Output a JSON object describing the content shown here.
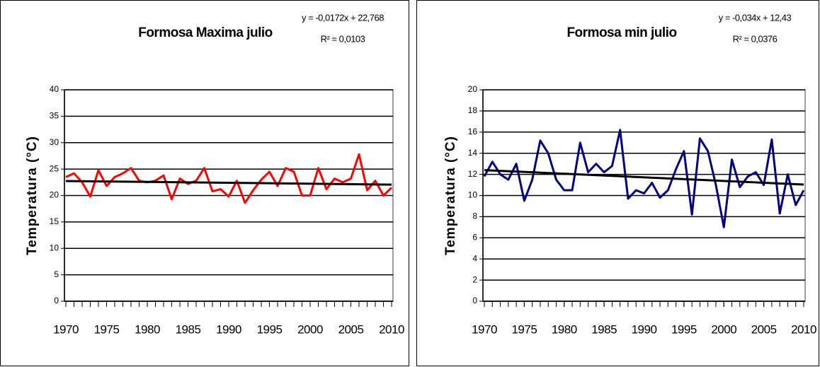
{
  "chart_data": [
    {
      "type": "line",
      "title": "Formosa Maxima julio",
      "y_label": "Temperatura (°C)",
      "annotations": [
        "y = -0,0172x + 22,768",
        "R² = 0,0103"
      ],
      "x": [
        1970,
        1971,
        1972,
        1973,
        1974,
        1975,
        1976,
        1977,
        1978,
        1979,
        1980,
        1981,
        1982,
        1983,
        1984,
        1985,
        1986,
        1987,
        1988,
        1989,
        1990,
        1991,
        1992,
        1993,
        1994,
        1995,
        1996,
        1997,
        1998,
        1999,
        2000,
        2001,
        2002,
        2003,
        2004,
        2005,
        2006,
        2007,
        2008,
        2009,
        2010
      ],
      "series": [
        {
          "color": "#ff0000",
          "values": [
            23.5,
            24.2,
            22.5,
            19.8,
            24.8,
            21.8,
            23.5,
            24.2,
            25.2,
            22.8,
            22.5,
            22.8,
            23.8,
            19.3,
            23.2,
            22.2,
            22.8,
            25.2,
            20.8,
            21.2,
            19.8,
            22.8,
            18.6,
            21.0,
            23.0,
            24.5,
            21.8,
            25.2,
            24.5,
            20.0,
            20.0,
            25.2,
            21.2,
            23.2,
            22.5,
            23.2,
            27.8,
            21.0,
            22.8,
            20.0,
            21.5
          ]
        }
      ],
      "trendline": {
        "color": "#000000",
        "x": [
          1970,
          2010
        ],
        "values": [
          22.75,
          22.06
        ]
      },
      "xlim": [
        1970,
        2010
      ],
      "xticks": [
        1970,
        1975,
        1980,
        1985,
        1990,
        1995,
        2000,
        2005,
        2010
      ],
      "ylim": [
        0,
        40
      ],
      "yticks": [
        0,
        5,
        10,
        15,
        20,
        25,
        30,
        35,
        40
      ],
      "grid": true
    },
    {
      "type": "line",
      "title": "Formosa min julio",
      "y_label": "Temperatura (°C)",
      "annotations": [
        "y = -0,034x + 12,43",
        "R² = 0,0376"
      ],
      "x": [
        1970,
        1971,
        1972,
        1973,
        1974,
        1975,
        1976,
        1977,
        1978,
        1979,
        1980,
        1981,
        1982,
        1983,
        1984,
        1985,
        1986,
        1987,
        1988,
        1989,
        1990,
        1991,
        1992,
        1993,
        1994,
        1995,
        1996,
        1997,
        1998,
        1999,
        2000,
        2001,
        2002,
        2003,
        2004,
        2005,
        2006,
        2007,
        2008,
        2009,
        2010
      ],
      "series": [
        {
          "color": "#000080",
          "values": [
            11.8,
            13.2,
            12.0,
            11.5,
            13.0,
            9.5,
            11.5,
            15.2,
            14.0,
            11.5,
            10.5,
            10.5,
            15.0,
            12.2,
            13.0,
            12.2,
            12.8,
            16.2,
            9.7,
            10.5,
            10.2,
            11.2,
            9.8,
            10.5,
            12.5,
            14.2,
            8.2,
            15.4,
            14.2,
            11.0,
            7.0,
            13.4,
            10.8,
            11.8,
            12.2,
            11.0,
            15.3,
            8.3,
            12.0,
            9.1,
            10.5
          ]
        }
      ],
      "trendline": {
        "color": "#000000",
        "x": [
          1970,
          2010
        ],
        "values": [
          12.4,
          11.04
        ]
      },
      "xlim": [
        1970,
        2010
      ],
      "xticks": [
        1970,
        1975,
        1980,
        1985,
        1990,
        1995,
        2000,
        2005,
        2010
      ],
      "ylim": [
        0,
        20
      ],
      "yticks": [
        0,
        2,
        4,
        6,
        8,
        10,
        12,
        14,
        16,
        18,
        20
      ],
      "grid": true
    }
  ]
}
